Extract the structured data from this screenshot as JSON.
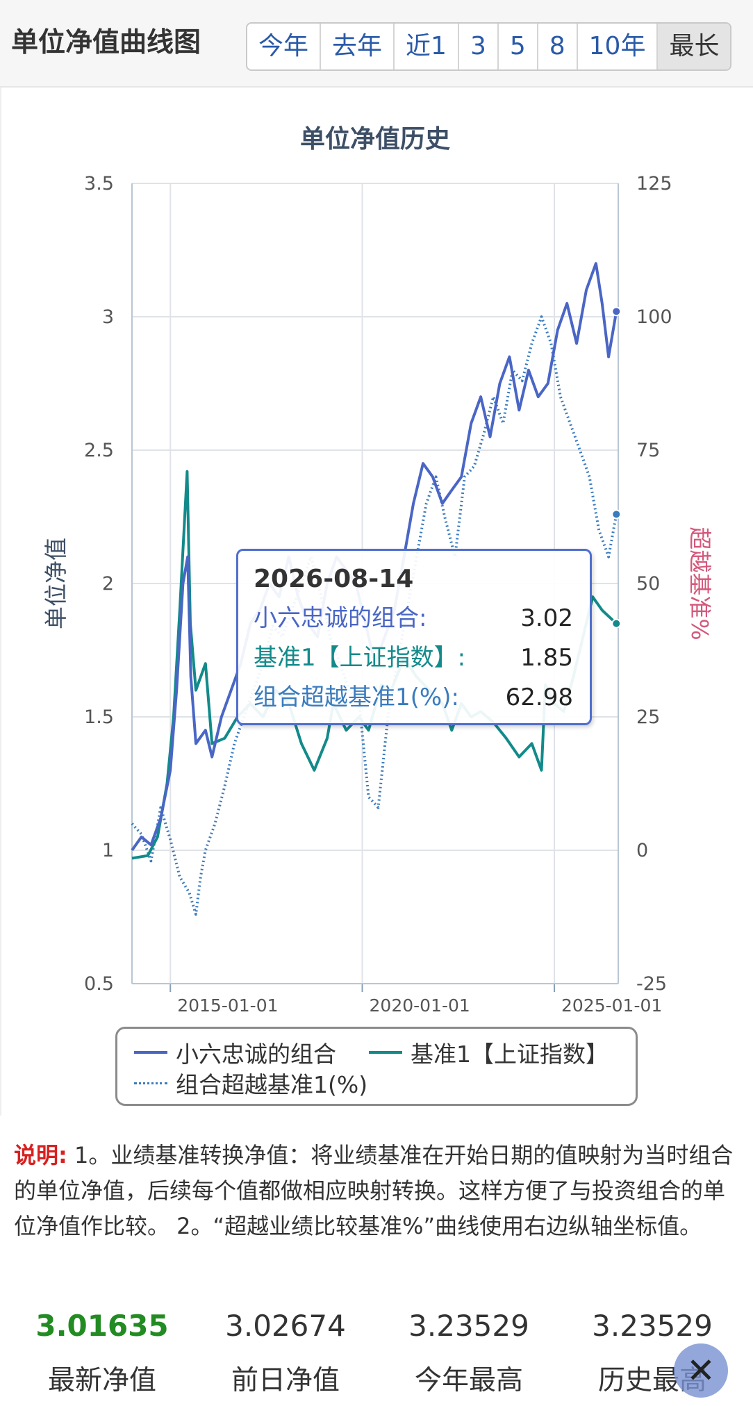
{
  "header": {
    "title": "单位净值曲线图",
    "tabs": [
      {
        "label": "今年",
        "active": false
      },
      {
        "label": "去年",
        "active": false
      },
      {
        "label": "近1",
        "active": false
      },
      {
        "label": "3",
        "active": false
      },
      {
        "label": "5",
        "active": false
      },
      {
        "label": "8",
        "active": false
      },
      {
        "label": "10年",
        "active": false
      },
      {
        "label": "最长",
        "active": true
      }
    ]
  },
  "chart_data": {
    "type": "line",
    "title": "单位净值历史",
    "ylabel": "单位净值",
    "y2label": "超越基准%",
    "ylim": [
      0.5,
      3.5
    ],
    "y2lim": [
      -25,
      125
    ],
    "yticks": [
      "0.5",
      "1",
      "1.5",
      "2",
      "2.5",
      "3",
      "3.5"
    ],
    "y2ticks": [
      "-25",
      "0",
      "25",
      "50",
      "75",
      "100",
      "125"
    ],
    "xlim": [
      "2014-01-01",
      "2026-09-01"
    ],
    "xticks": [
      "2015-01-01",
      "2020-01-01",
      "2025-01-01"
    ],
    "grid": true,
    "colors": {
      "portfolio": "#4a66c5",
      "benchmark": "#138a8a",
      "excess": "#3a7bbd"
    },
    "series": [
      {
        "name": "小六忠诚的组合",
        "axis": "left",
        "style": "solid",
        "x": [
          "2014-01-01",
          "2014-04-01",
          "2014-07-01",
          "2014-10-01",
          "2015-01-01",
          "2015-03-01",
          "2015-05-01",
          "2015-06-15",
          "2015-07-15",
          "2015-09-01",
          "2015-12-01",
          "2016-02-01",
          "2016-05-01",
          "2016-08-01",
          "2016-11-01",
          "2017-02-01",
          "2017-05-01",
          "2017-08-01",
          "2017-11-01",
          "2018-02-01",
          "2018-05-01",
          "2018-08-01",
          "2018-11-01",
          "2019-02-01",
          "2019-05-01",
          "2019-08-01",
          "2019-11-01",
          "2020-02-01",
          "2020-05-01",
          "2020-08-01",
          "2020-11-01",
          "2021-02-01",
          "2021-05-01",
          "2021-08-01",
          "2021-11-01",
          "2022-02-01",
          "2022-05-01",
          "2022-08-01",
          "2022-11-01",
          "2023-02-01",
          "2023-05-01",
          "2023-08-01",
          "2023-11-01",
          "2024-02-01",
          "2024-05-01",
          "2024-08-01",
          "2024-11-01",
          "2025-02-01",
          "2025-05-01",
          "2025-08-01",
          "2025-11-01",
          "2026-02-01",
          "2026-04-01",
          "2026-06-01",
          "2026-08-14"
        ],
        "values": [
          1.0,
          1.05,
          1.02,
          1.12,
          1.3,
          1.6,
          2.0,
          2.1,
          1.65,
          1.4,
          1.45,
          1.35,
          1.5,
          1.6,
          1.7,
          1.85,
          1.9,
          2.0,
          1.95,
          2.1,
          1.95,
          1.85,
          1.8,
          2.0,
          2.1,
          2.05,
          2.0,
          1.85,
          1.7,
          1.8,
          1.9,
          2.1,
          2.3,
          2.45,
          2.4,
          2.3,
          2.35,
          2.4,
          2.6,
          2.7,
          2.55,
          2.75,
          2.85,
          2.65,
          2.8,
          2.7,
          2.75,
          2.95,
          3.05,
          2.9,
          3.1,
          3.2,
          3.05,
          2.85,
          3.02
        ]
      },
      {
        "name": "基准1【上证指数】",
        "axis": "left",
        "style": "solid",
        "x": [
          "2014-01-01",
          "2014-06-01",
          "2014-09-01",
          "2014-12-01",
          "2015-02-01",
          "2015-04-01",
          "2015-06-10",
          "2015-07-10",
          "2015-09-01",
          "2015-12-01",
          "2016-02-01",
          "2016-06-01",
          "2016-10-01",
          "2017-02-01",
          "2017-06-01",
          "2017-10-01",
          "2018-02-01",
          "2018-06-01",
          "2018-10-01",
          "2019-02-01",
          "2019-04-01",
          "2019-08-01",
          "2019-12-01",
          "2020-03-01",
          "2020-07-01",
          "2020-10-01",
          "2021-02-01",
          "2021-06-01",
          "2021-10-01",
          "2022-02-01",
          "2022-05-01",
          "2022-08-01",
          "2022-11-01",
          "2023-02-01",
          "2023-06-01",
          "2023-10-01",
          "2024-02-01",
          "2024-06-01",
          "2024-09-01",
          "2024-10-08",
          "2025-01-01",
          "2025-04-01",
          "2025-07-01",
          "2025-10-01",
          "2026-01-01",
          "2026-04-01",
          "2026-08-14"
        ],
        "values": [
          0.97,
          0.98,
          1.05,
          1.25,
          1.5,
          1.9,
          2.42,
          1.85,
          1.6,
          1.7,
          1.4,
          1.42,
          1.5,
          1.55,
          1.5,
          1.6,
          1.55,
          1.4,
          1.3,
          1.42,
          1.55,
          1.45,
          1.5,
          1.45,
          1.62,
          1.6,
          1.72,
          1.65,
          1.6,
          1.55,
          1.45,
          1.55,
          1.5,
          1.52,
          1.48,
          1.42,
          1.35,
          1.4,
          1.3,
          1.62,
          1.55,
          1.52,
          1.65,
          1.8,
          1.95,
          1.9,
          1.85
        ]
      },
      {
        "name": "组合超越基准1(%)",
        "axis": "right",
        "style": "dotted",
        "x": [
          "2014-01-01",
          "2014-04-01",
          "2014-07-01",
          "2014-10-01",
          "2015-01-01",
          "2015-04-01",
          "2015-07-01",
          "2015-09-01",
          "2015-10-15",
          "2015-12-01",
          "2016-03-01",
          "2016-06-01",
          "2016-09-01",
          "2016-12-01",
          "2017-03-01",
          "2017-06-01",
          "2017-09-01",
          "2017-12-01",
          "2018-03-01",
          "2018-06-01",
          "2018-09-01",
          "2018-12-01",
          "2019-03-01",
          "2019-06-01",
          "2019-09-01",
          "2019-12-01",
          "2020-03-01",
          "2020-06-01",
          "2020-09-01",
          "2020-12-01",
          "2021-03-01",
          "2021-06-01",
          "2021-09-01",
          "2021-12-01",
          "2022-03-01",
          "2022-06-01",
          "2022-09-01",
          "2022-12-01",
          "2023-03-01",
          "2023-06-01",
          "2023-09-01",
          "2023-12-01",
          "2024-03-01",
          "2024-06-01",
          "2024-09-01",
          "2024-12-01",
          "2025-03-01",
          "2025-06-01",
          "2025-09-01",
          "2025-12-01",
          "2026-03-01",
          "2026-06-01",
          "2026-08-14"
        ],
        "values": [
          5,
          3,
          -2,
          8,
          2,
          -5,
          -8,
          -12,
          -5,
          0,
          5,
          12,
          20,
          25,
          30,
          35,
          42,
          40,
          45,
          50,
          55,
          48,
          40,
          35,
          30,
          28,
          10,
          8,
          25,
          35,
          45,
          55,
          65,
          70,
          62,
          55,
          70,
          72,
          78,
          85,
          80,
          90,
          88,
          95,
          100,
          95,
          85,
          80,
          75,
          70,
          60,
          55,
          62.98
        ]
      }
    ],
    "tooltip": {
      "date": "2026-08-14",
      "rows": [
        {
          "label": "小六忠诚的组合:",
          "value": "3.02"
        },
        {
          "label": "基准1【上证指数】:",
          "value": "1.85"
        },
        {
          "label": "组合超越基准1(%):",
          "value": "62.98"
        }
      ]
    },
    "legend": {
      "placement": "bottom",
      "items": [
        "小六忠诚的组合",
        "基准1【上证指数】",
        "组合超越基准1(%)"
      ]
    }
  },
  "notes": {
    "label": "说明:",
    "text": "1。业绩基准转换净值：将业绩基准在开始日期的值映射为当时组合的单位净值，后续每个值都做相应映射转换。这样方便了与投资组合的单位净值作比较。 2。“超越业绩比较基准%”曲线使用右边纵轴坐标值。"
  },
  "stats": [
    {
      "value": "3.01635",
      "label": "最新净值",
      "accent": true
    },
    {
      "value": "3.02674",
      "label": "前日净值",
      "accent": false
    },
    {
      "value": "3.23529",
      "label": "今年最高",
      "accent": false
    },
    {
      "value": "3.23529",
      "label": "历史最高",
      "accent": false
    }
  ],
  "close_icon": "close-icon"
}
